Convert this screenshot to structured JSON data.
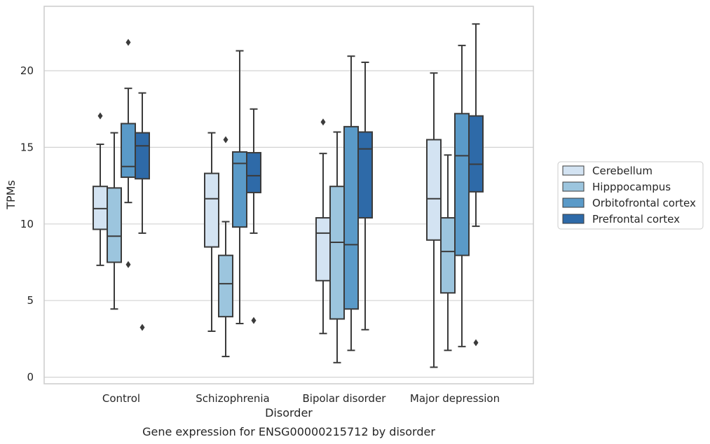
{
  "chart_data": {
    "type": "box",
    "title": "",
    "caption": "Gene expression for ENSG00000215712 by disorder",
    "xlabel": "Disorder",
    "ylabel": "TPMs",
    "ylim": [
      -0.4,
      24.1
    ],
    "yticks": [
      0,
      5,
      10,
      15,
      20
    ],
    "grid": "horizontal",
    "legend_position": "right (outside)",
    "categories": [
      "Control",
      "Schizophrenia",
      "Bipolar disorder",
      "Major depression"
    ],
    "series": [
      {
        "name": "Cerebellum",
        "color": "#d3e3f2",
        "boxes": [
          {
            "whislo": 7.3,
            "q1": 9.65,
            "med": 11.0,
            "q3": 12.45,
            "whishi": 15.2,
            "fliers": [
              17.05
            ]
          },
          {
            "whislo": 3.0,
            "q1": 8.5,
            "med": 11.65,
            "q3": 13.3,
            "whishi": 15.95,
            "fliers": []
          },
          {
            "whislo": 2.85,
            "q1": 6.3,
            "med": 9.4,
            "q3": 10.4,
            "whishi": 14.6,
            "fliers": [
              16.65
            ]
          },
          {
            "whislo": 0.65,
            "q1": 8.95,
            "med": 11.65,
            "q3": 15.5,
            "whishi": 19.85,
            "fliers": []
          }
        ]
      },
      {
        "name": "Hipppocampus",
        "color": "#9cc5de",
        "boxes": [
          {
            "whislo": 4.45,
            "q1": 7.5,
            "med": 9.2,
            "q3": 12.35,
            "whishi": 15.95,
            "fliers": []
          },
          {
            "whislo": 1.35,
            "q1": 3.95,
            "med": 6.1,
            "q3": 7.95,
            "whishi": 10.15,
            "fliers": [
              15.5
            ]
          },
          {
            "whislo": 0.95,
            "q1": 3.8,
            "med": 8.8,
            "q3": 12.45,
            "whishi": 16.0,
            "fliers": []
          },
          {
            "whislo": 1.75,
            "q1": 5.5,
            "med": 8.2,
            "q3": 10.4,
            "whishi": 14.5,
            "fliers": []
          }
        ]
      },
      {
        "name": "Orbitofrontal cortex",
        "color": "#5a9ac8",
        "boxes": [
          {
            "whislo": 11.4,
            "q1": 13.05,
            "med": 13.75,
            "q3": 16.55,
            "whishi": 18.85,
            "fliers": [
              7.35,
              21.85
            ]
          },
          {
            "whislo": 3.5,
            "q1": 9.8,
            "med": 13.95,
            "q3": 14.7,
            "whishi": 21.3,
            "fliers": []
          },
          {
            "whislo": 1.75,
            "q1": 4.45,
            "med": 8.65,
            "q3": 16.35,
            "whishi": 20.95,
            "fliers": []
          },
          {
            "whislo": 2.0,
            "q1": 7.95,
            "med": 14.45,
            "q3": 17.2,
            "whishi": 21.65,
            "fliers": []
          }
        ]
      },
      {
        "name": "Prefrontal cortex",
        "color": "#2e6aa8",
        "boxes": [
          {
            "whislo": 9.4,
            "q1": 12.95,
            "med": 15.1,
            "q3": 15.95,
            "whishi": 18.55,
            "fliers": [
              3.25
            ]
          },
          {
            "whislo": 9.4,
            "q1": 12.05,
            "med": 13.15,
            "q3": 14.65,
            "whishi": 17.5,
            "fliers": [
              3.7
            ]
          },
          {
            "whislo": 3.1,
            "q1": 10.4,
            "med": 14.9,
            "q3": 16.0,
            "whishi": 20.55,
            "fliers": []
          },
          {
            "whislo": 9.85,
            "q1": 12.1,
            "med": 13.9,
            "q3": 17.05,
            "whishi": 23.05,
            "fliers": [
              2.25
            ]
          }
        ]
      }
    ]
  }
}
